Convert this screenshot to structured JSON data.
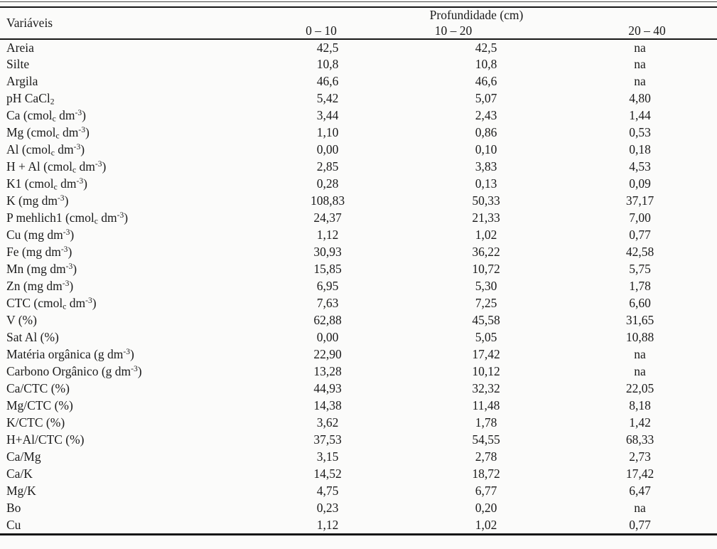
{
  "table": {
    "variables_header": "Variáveis",
    "group_header": "Profundidade (cm)",
    "depth_columns": [
      "0 – 10",
      "10 – 20",
      "20 – 40"
    ],
    "rows": [
      {
        "label": "Areia",
        "values": [
          "42,5",
          "42,5",
          "na"
        ]
      },
      {
        "label": "Silte",
        "values": [
          "10,8",
          "10,8",
          "na"
        ]
      },
      {
        "label": "Argila",
        "values": [
          "46,6",
          "46,6",
          "na"
        ]
      },
      {
        "label": "pH CaCl_{2}",
        "values": [
          "5,42",
          "5,07",
          "4,80"
        ]
      },
      {
        "label": "Ca (cmol_{c} dm^{-3})",
        "values": [
          "3,44",
          "2,43",
          "1,44"
        ]
      },
      {
        "label": "Mg (cmol_{c} dm^{-3})",
        "values": [
          "1,10",
          "0,86",
          "0,53"
        ]
      },
      {
        "label": "Al (cmol_{c} dm^{-3})",
        "values": [
          "0,00",
          "0,10",
          "0,18"
        ]
      },
      {
        "label": "H + Al (cmol_{c} dm^{-3})",
        "values": [
          "2,85",
          "3,83",
          "4,53"
        ]
      },
      {
        "label": "K1 (cmol_{c} dm^{-3})",
        "values": [
          "0,28",
          "0,13",
          "0,09"
        ]
      },
      {
        "label": "K (mg dm^{-3})",
        "values": [
          "108,83",
          "50,33",
          "37,17"
        ]
      },
      {
        "label": "P mehlich1 (cmol_{c} dm^{-3})",
        "values": [
          "24,37",
          "21,33",
          "7,00"
        ]
      },
      {
        "label": "Cu (mg dm^{-3})",
        "values": [
          "1,12",
          "1,02",
          "0,77"
        ]
      },
      {
        "label": "Fe (mg dm^{-3})",
        "values": [
          "30,93",
          "36,22",
          "42,58"
        ]
      },
      {
        "label": "Mn (mg dm^{-3})",
        "values": [
          "15,85",
          "10,72",
          "5,75"
        ]
      },
      {
        "label": "Zn (mg dm^{-3})",
        "values": [
          "6,95",
          "5,30",
          "1,78"
        ]
      },
      {
        "label": "CTC (cmol_{c} dm^{-3})",
        "values": [
          "7,63",
          "7,25",
          "6,60"
        ]
      },
      {
        "label": "V (%)",
        "values": [
          "62,88",
          "45,58",
          "31,65"
        ]
      },
      {
        "label": "Sat Al (%)",
        "values": [
          "0,00",
          "5,05",
          "10,88"
        ]
      },
      {
        "label": "Matéria orgânica (g dm^{-3})",
        "values": [
          "22,90",
          "17,42",
          "na"
        ]
      },
      {
        "label": "Carbono Orgânico (g dm^{-3})",
        "values": [
          "13,28",
          "10,12",
          "na"
        ]
      },
      {
        "label": "Ca/CTC (%)",
        "values": [
          "44,93",
          "32,32",
          "22,05"
        ]
      },
      {
        "label": "Mg/CTC (%)",
        "values": [
          "14,38",
          "11,48",
          "8,18"
        ]
      },
      {
        "label": "K/CTC (%)",
        "values": [
          "3,62",
          "1,78",
          "1,42"
        ]
      },
      {
        "label": "H+Al/CTC (%)",
        "values": [
          "37,53",
          "54,55",
          "68,33"
        ]
      },
      {
        "label": "Ca/Mg",
        "values": [
          "3,15",
          "2,78",
          "2,73"
        ]
      },
      {
        "label": "Ca/K",
        "values": [
          "14,52",
          "18,72",
          "17,42"
        ]
      },
      {
        "label": "Mg/K",
        "values": [
          "4,75",
          "6,77",
          "6,47"
        ]
      },
      {
        "label": "Bo",
        "values": [
          "0,23",
          "0,20",
          "na"
        ]
      },
      {
        "label": "Cu",
        "values": [
          "1,12",
          "1,02",
          "0,77"
        ]
      }
    ]
  },
  "colors": {
    "text": "#1b1b1b",
    "rule": "#171717",
    "background": "#fbfbfa"
  }
}
